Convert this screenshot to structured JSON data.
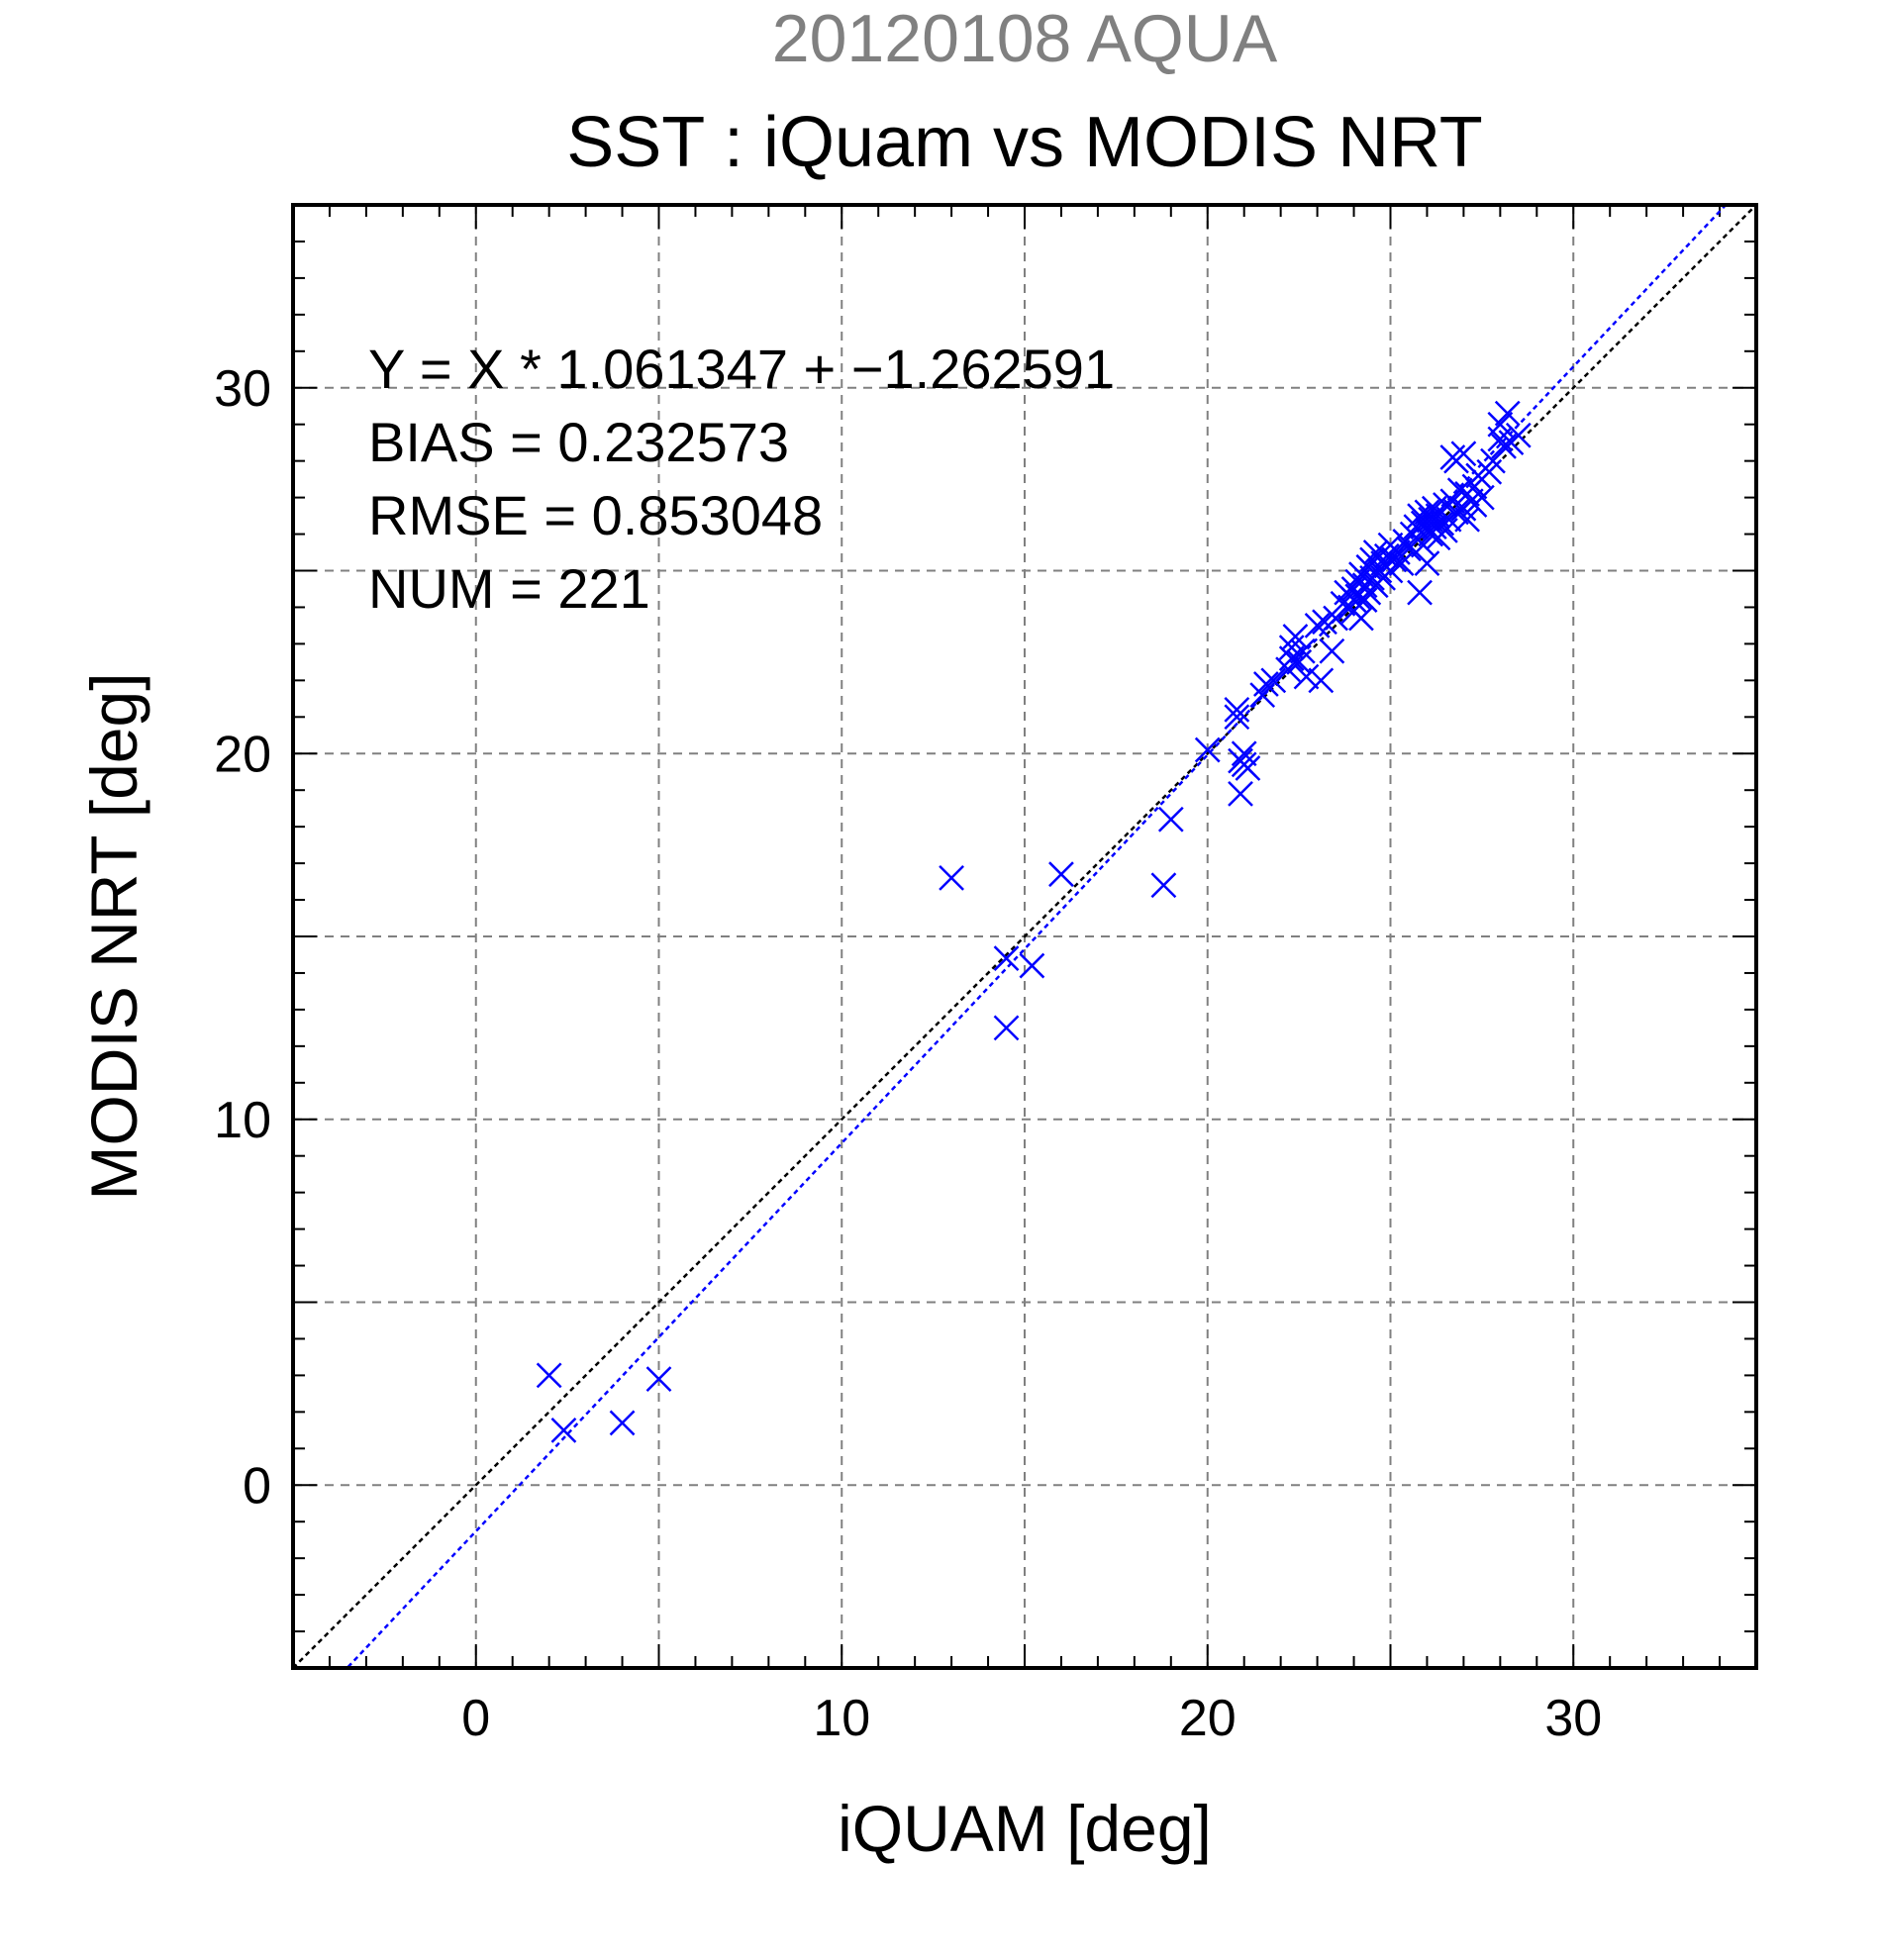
{
  "colors": {
    "point": "#0000ff",
    "fit_line": "#0000ff",
    "identity_line": "#000000",
    "grid": "#808080",
    "supertitle": "#808080"
  },
  "chart_data": {
    "type": "scatter",
    "supertitle": "20120108 AQUA",
    "title": "SST : iQuam vs MODIS NRT",
    "xlabel": "iQUAM [deg]",
    "ylabel": "MODIS NRT [deg]",
    "xlim": [
      -5,
      35
    ],
    "ylim": [
      -5,
      35
    ],
    "xticks": [
      0,
      10,
      20,
      30
    ],
    "yticks": [
      0,
      10,
      20,
      30
    ],
    "xtick_labels": [
      "0",
      "10",
      "20",
      "30"
    ],
    "ytick_labels": [
      "0",
      "10",
      "20",
      "30"
    ],
    "grid": true,
    "marker": "x",
    "annotations": [
      "Y = X * 1.061347 + −1.262591",
      "BIAS = 0.232573",
      "RMSE = 0.853048",
      "NUM = 221"
    ],
    "fit": {
      "slope": 1.061347,
      "intercept": -1.262591
    },
    "identity_line": true,
    "points": [
      [
        2.0,
        3.0
      ],
      [
        2.4,
        1.5
      ],
      [
        4.0,
        1.7
      ],
      [
        5.0,
        2.9
      ],
      [
        13.0,
        16.6
      ],
      [
        14.5,
        14.4
      ],
      [
        14.5,
        12.5
      ],
      [
        15.2,
        14.2
      ],
      [
        16.0,
        16.7
      ],
      [
        18.8,
        16.4
      ],
      [
        19.0,
        18.2
      ],
      [
        20.0,
        20.1
      ],
      [
        20.8,
        21.0
      ],
      [
        20.8,
        21.2
      ],
      [
        20.9,
        19.8
      ],
      [
        20.9,
        18.9
      ],
      [
        21.0,
        20.0
      ],
      [
        21.0,
        19.7
      ],
      [
        21.1,
        19.6
      ],
      [
        21.5,
        21.6
      ],
      [
        21.6,
        21.9
      ],
      [
        21.8,
        22.0
      ],
      [
        22.2,
        22.3
      ],
      [
        22.3,
        22.6
      ],
      [
        22.3,
        22.9
      ],
      [
        22.4,
        23.2
      ],
      [
        22.5,
        22.5
      ],
      [
        22.6,
        22.8
      ],
      [
        22.7,
        22.1
      ],
      [
        23.0,
        23.5
      ],
      [
        23.1,
        22.0
      ],
      [
        23.2,
        23.6
      ],
      [
        23.4,
        22.8
      ],
      [
        23.5,
        23.7
      ],
      [
        23.7,
        24.1
      ],
      [
        23.8,
        24.4
      ],
      [
        23.9,
        24.0
      ],
      [
        24.0,
        24.5
      ],
      [
        24.0,
        24.2
      ],
      [
        24.0,
        23.9
      ],
      [
        24.1,
        24.7
      ],
      [
        24.1,
        24.3
      ],
      [
        24.2,
        23.7
      ],
      [
        24.2,
        24.9
      ],
      [
        24.3,
        24.6
      ],
      [
        24.3,
        24.2
      ],
      [
        24.4,
        25.1
      ],
      [
        24.4,
        24.4
      ],
      [
        24.5,
        24.8
      ],
      [
        24.5,
        25.3
      ],
      [
        24.6,
        24.6
      ],
      [
        24.6,
        25.5
      ],
      [
        24.7,
        25.0
      ],
      [
        24.8,
        24.8
      ],
      [
        24.8,
        25.2
      ],
      [
        24.9,
        25.4
      ],
      [
        25.0,
        25.0
      ],
      [
        25.0,
        25.7
      ],
      [
        25.1,
        25.3
      ],
      [
        25.2,
        25.5
      ],
      [
        25.3,
        25.2
      ],
      [
        25.4,
        25.8
      ],
      [
        25.5,
        25.6
      ],
      [
        25.6,
        26.0
      ],
      [
        25.7,
        26.2
      ],
      [
        25.7,
        25.9
      ],
      [
        25.8,
        26.5
      ],
      [
        25.8,
        24.4
      ],
      [
        25.9,
        26.3
      ],
      [
        25.9,
        25.7
      ],
      [
        26.0,
        26.1
      ],
      [
        26.0,
        26.6
      ],
      [
        26.0,
        25.2
      ],
      [
        26.1,
        26.4
      ],
      [
        26.1,
        26.0
      ],
      [
        26.2,
        26.7
      ],
      [
        26.2,
        26.2
      ],
      [
        26.3,
        26.5
      ],
      [
        26.3,
        25.9
      ],
      [
        26.4,
        26.3
      ],
      [
        26.5,
        26.8
      ],
      [
        26.5,
        26.1
      ],
      [
        26.6,
        26.4
      ],
      [
        26.7,
        26.9
      ],
      [
        26.7,
        28.1
      ],
      [
        26.8,
        26.6
      ],
      [
        26.8,
        28.0
      ],
      [
        26.9,
        27.2
      ],
      [
        27.0,
        28.2
      ],
      [
        27.0,
        26.7
      ],
      [
        27.1,
        27.1
      ],
      [
        27.1,
        26.4
      ],
      [
        27.2,
        26.9
      ],
      [
        27.3,
        27.3
      ],
      [
        27.3,
        26.8
      ],
      [
        27.4,
        27.6
      ],
      [
        27.5,
        27.0
      ],
      [
        27.7,
        27.7
      ],
      [
        27.8,
        28.0
      ],
      [
        28.0,
        28.6
      ],
      [
        28.0,
        29.0
      ],
      [
        28.1,
        28.4
      ],
      [
        28.2,
        29.3
      ],
      [
        28.3,
        28.5
      ],
      [
        28.5,
        28.7
      ]
    ]
  }
}
